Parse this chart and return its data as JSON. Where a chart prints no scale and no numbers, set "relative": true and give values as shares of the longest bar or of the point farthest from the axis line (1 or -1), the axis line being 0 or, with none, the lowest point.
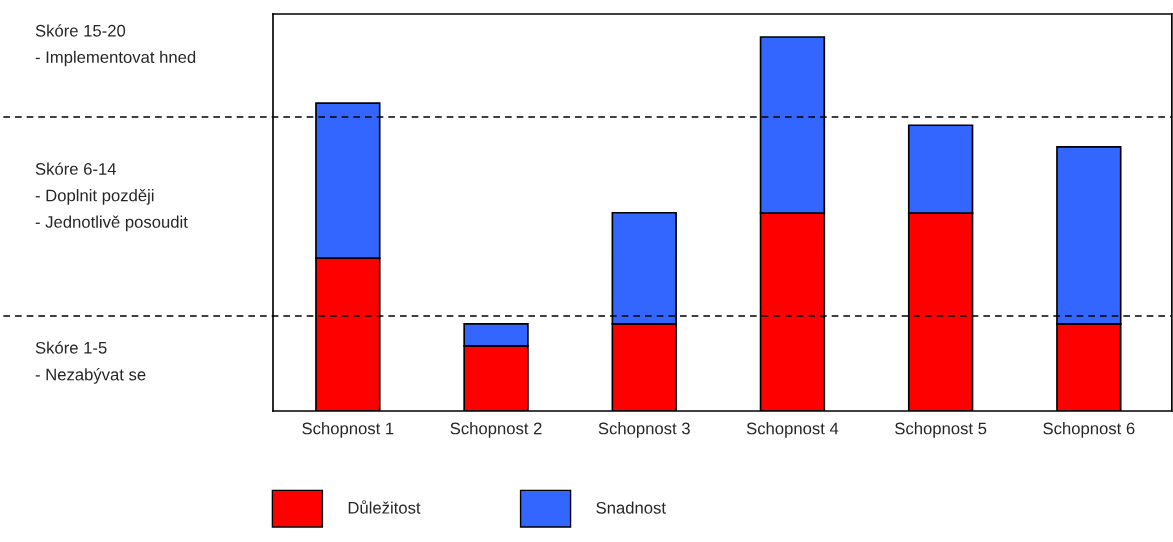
{
  "chart_data": {
    "type": "bar",
    "stacked": true,
    "relative": true,
    "categories": [
      "Schopnost 1",
      "Schopnost 2",
      "Schopnost 3",
      "Schopnost 4",
      "Schopnost 5",
      "Schopnost 6"
    ],
    "series": [
      {
        "name": "Důležitost",
        "color": "#ff0000",
        "values": [
          0.409,
          0.174,
          0.233,
          0.529,
          0.529,
          0.233
        ]
      },
      {
        "name": "Snadnost",
        "color": "#3366ff",
        "values": [
          0.414,
          0.059,
          0.297,
          0.471,
          0.235,
          0.473
        ]
      }
    ],
    "ref_lines": [
      {
        "axis": "y",
        "value": 0.254,
        "line_style": "dashed",
        "color": "#000000"
      },
      {
        "axis": "y",
        "value": 0.786,
        "line_style": "dashed",
        "color": "#000000"
      }
    ],
    "annotations": [
      "Skóre 15-20\n- Implementovat hned",
      "Skóre 6-14\n- Doplnit později\n- Jednotlivě posoudit",
      "Skóre 1-5\n- Nezabývat se"
    ],
    "legend": "bottom",
    "grid": false
  }
}
